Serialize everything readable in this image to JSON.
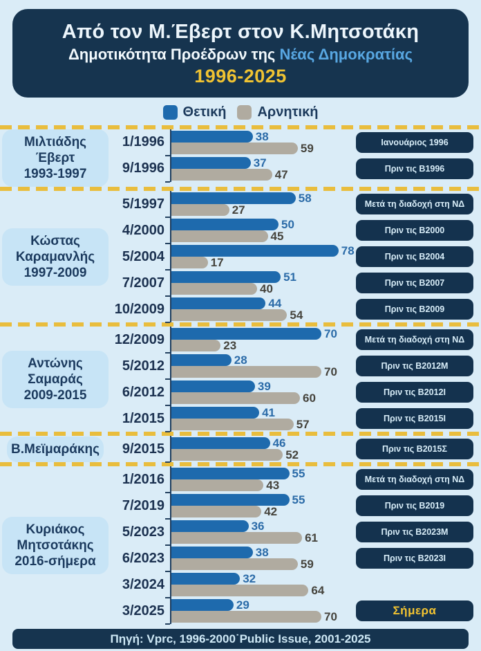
{
  "header": {
    "title": "Από τον Μ.Έβερτ στον Κ.Μητσοτάκη",
    "subtitle_prefix": "Δημοτικότητα Προέδρων της ",
    "subtitle_highlight": "Νέας Δημοκρατίας",
    "years": "1996-2025"
  },
  "legend": {
    "positive": "Θετική",
    "negative": "Αρνητική"
  },
  "footer": {
    "source": "Πηγή: Vprc, 1996-2000˙Public Issue, 2001-2025"
  },
  "colors": {
    "background": "#daecf7",
    "panel_navy": "#16344f",
    "badge_navy": "#14324e",
    "positive_blue": "#1e6aad",
    "negative_gray": "#b0aba0",
    "accent_yellow": "#f0c332",
    "leader_box_blue": "#c7e4f6",
    "dashed_separator": "#e9bd3d"
  },
  "chart_data": {
    "type": "bar",
    "orientation": "horizontal",
    "title": "Από τον Μ.Έβερτ στον Κ.Μητσοτάκη — Δημοτικότητα Προέδρων της Νέας Δημοκρατίας 1996-2025",
    "series_names": [
      "Θετική",
      "Αρνητική"
    ],
    "value_range": [
      0,
      100
    ],
    "legend_position": "top",
    "grid": false,
    "groups": [
      {
        "leader": "Μιλτιάδης Έβερτ",
        "period": "1993-1997",
        "rows": [
          {
            "date": "1/1996",
            "positive": 38,
            "negative": 59,
            "badge": "Ιανουάριος 1996"
          },
          {
            "date": "9/1996",
            "positive": 37,
            "negative": 47,
            "badge": "Πριν τις Β1996"
          }
        ]
      },
      {
        "leader": "Κώστας Καραμανλής",
        "period": "1997-2009",
        "rows": [
          {
            "date": "5/1997",
            "positive": 58,
            "negative": 27,
            "badge": "Μετά τη διαδοχή στη ΝΔ"
          },
          {
            "date": "4/2000",
            "positive": 50,
            "negative": 45,
            "badge": "Πριν τις Β2000"
          },
          {
            "date": "5/2004",
            "positive": 78,
            "negative": 17,
            "badge": "Πριν τις Β2004"
          },
          {
            "date": "7/2007",
            "positive": 51,
            "negative": 40,
            "badge": "Πριν τις Β2007"
          },
          {
            "date": "10/2009",
            "positive": 44,
            "negative": 54,
            "badge": "Πριν τις Β2009"
          }
        ]
      },
      {
        "leader": "Αντώνης Σαμαράς",
        "period": "2009-2015",
        "rows": [
          {
            "date": "12/2009",
            "positive": 70,
            "negative": 23,
            "badge": "Μετά τη διαδοχή στη ΝΔ"
          },
          {
            "date": "5/2012",
            "positive": 28,
            "negative": 70,
            "badge": "Πριν τις Β2012Μ"
          },
          {
            "date": "6/2012",
            "positive": 39,
            "negative": 60,
            "badge": "Πριν τις Β2012Ι"
          },
          {
            "date": "1/2015",
            "positive": 41,
            "negative": 57,
            "badge": "Πριν τις Β2015Ι"
          }
        ]
      },
      {
        "leader": "Β.Μεϊμαράκης",
        "period": "",
        "rows": [
          {
            "date": "9/2015",
            "positive": 46,
            "negative": 52,
            "badge": "Πριν τις Β2015Σ"
          }
        ]
      },
      {
        "leader": "Κυριάκος Μητσοτάκης",
        "period": "2016-σήμερα",
        "rows": [
          {
            "date": "1/2016",
            "positive": 55,
            "negative": 43,
            "badge": "Μετά τη διαδοχή στη ΝΔ"
          },
          {
            "date": "7/2019",
            "positive": 55,
            "negative": 42,
            "badge": "Πριν τις Β2019"
          },
          {
            "date": "5/2023",
            "positive": 36,
            "negative": 61,
            "badge": "Πριν τις Β2023Μ"
          },
          {
            "date": "6/2023",
            "positive": 38,
            "negative": 59,
            "badge": "Πριν τις Β2023Ι"
          },
          {
            "date": "3/2024",
            "positive": 32,
            "negative": 64,
            "badge": ""
          },
          {
            "date": "3/2025",
            "positive": 29,
            "negative": 70,
            "badge": "Σήμερα"
          }
        ]
      }
    ]
  }
}
